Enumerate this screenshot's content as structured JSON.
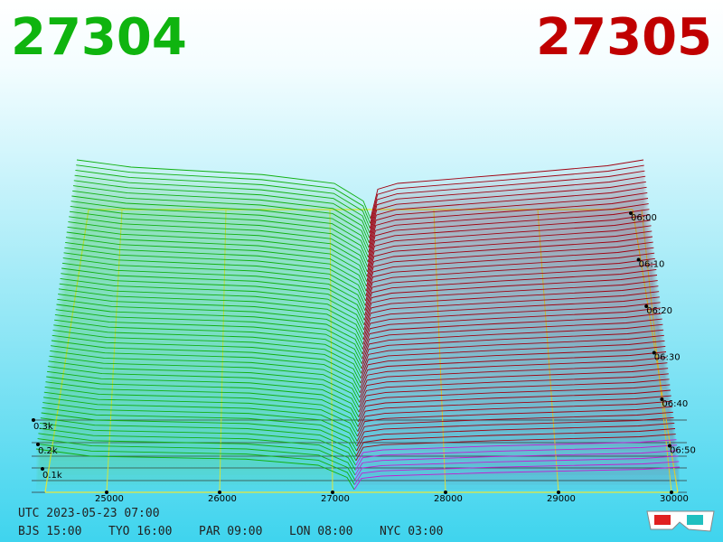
{
  "header": {
    "bid": "27304",
    "ask": "27305"
  },
  "price_axis": {
    "ticks": [
      "25000",
      "26000",
      "27000",
      "28000",
      "29000",
      "30000"
    ]
  },
  "depth_axis": {
    "ticks": [
      "0.3k",
      "0.2k",
      "0.1k"
    ]
  },
  "time_axis": {
    "ticks": [
      "06:00",
      "06:10",
      "06:20",
      "06:30",
      "06:40",
      "06:50"
    ]
  },
  "footer": {
    "utc": "UTC 2023-05-23 07:00",
    "zones": [
      "BJS 15:00",
      "TYO 16:00",
      "PAR 09:00",
      "LON 08:00",
      "NYC 03:00"
    ]
  }
}
